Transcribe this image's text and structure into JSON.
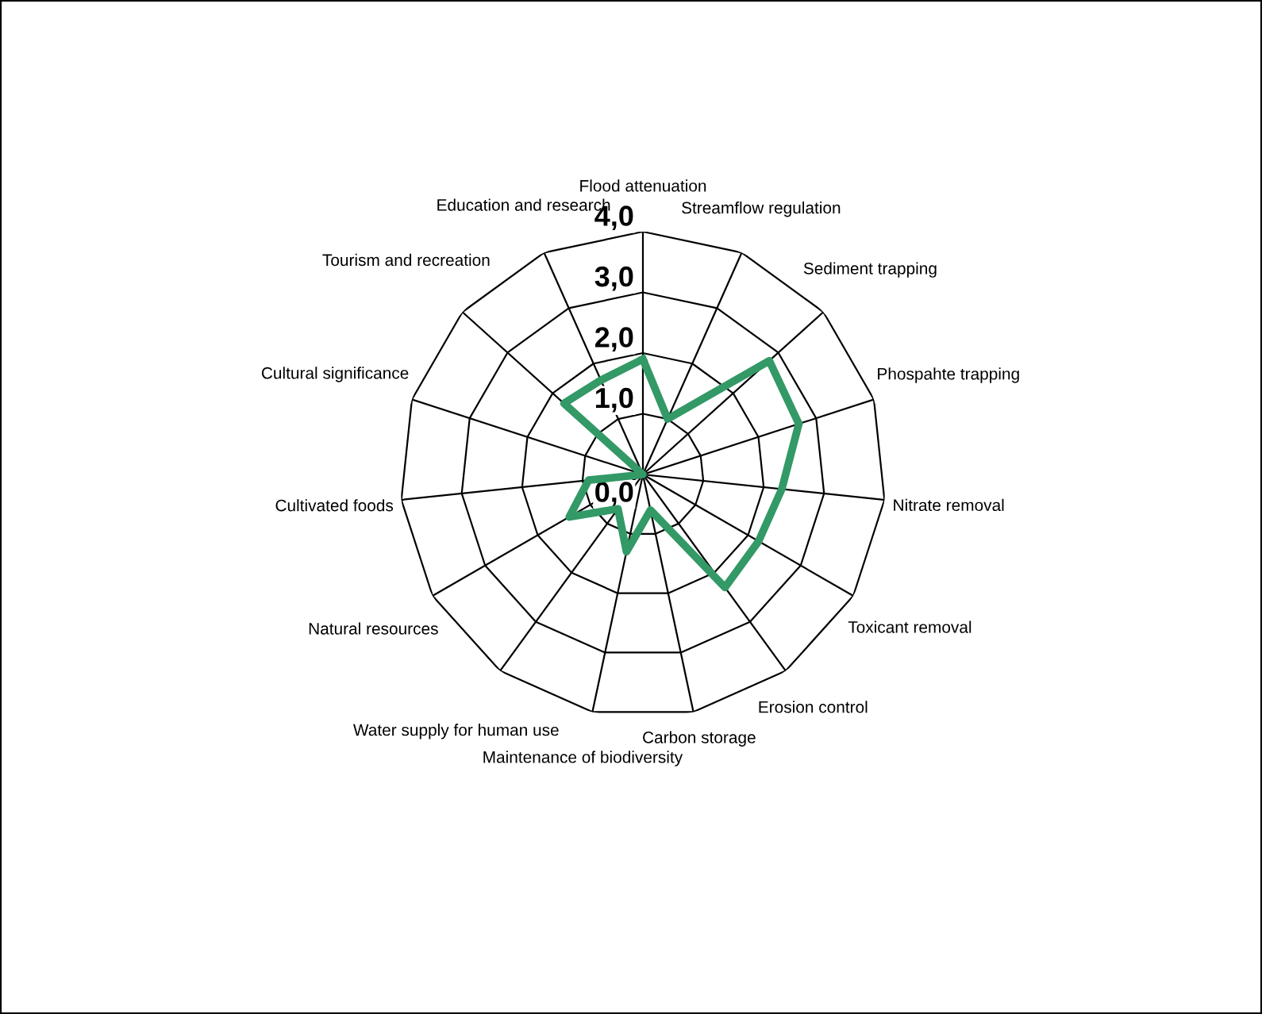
{
  "chart_data": {
    "type": "radar",
    "categories": [
      "Flood attenuation",
      "Streamflow regulation",
      "Sediment trapping",
      "Phospahte trapping",
      "Nitrate removal",
      "Toxicant removal",
      "Erosion control",
      "Carbon storage",
      "Maintenance of biodiversity",
      "Water supply for human use",
      "Natural resources",
      "Cultivated foods",
      "Cultural significance",
      "Tourism and recreation",
      "Education and research"
    ],
    "series": [
      {
        "color": "#339966",
        "values": [
          1.9,
          1.0,
          2.8,
          2.7,
          2.3,
          2.2,
          2.3,
          0.6,
          1.3,
          0.7,
          1.4,
          0.9,
          0.0,
          1.75,
          1.7
        ]
      }
    ],
    "ylim": [
      0,
      4
    ],
    "yticks": [
      {
        "value": 0,
        "label": "0,0"
      },
      {
        "value": 1,
        "label": "1,0"
      },
      {
        "value": 2,
        "label": "2,0"
      },
      {
        "value": 3,
        "label": "3,0"
      },
      {
        "value": 4,
        "label": "4,0"
      }
    ],
    "grid": true,
    "legend": false
  }
}
